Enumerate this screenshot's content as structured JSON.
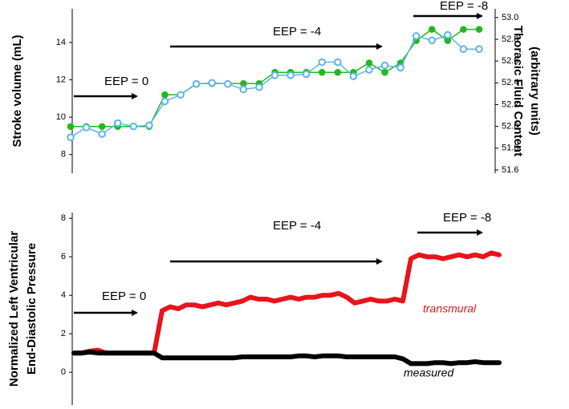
{
  "chart_data": [
    {
      "type": "line",
      "ylabel": "Stroke volume (mL)",
      "y2label": [
        "Thoracic Fluid Content",
        "(arbitrary units)"
      ],
      "ylim": [
        7.0,
        15.8
      ],
      "yticks": [
        8,
        10,
        12,
        14
      ],
      "y2lim": [
        51.57,
        53.08
      ],
      "y2ticks": [
        51.6,
        51.8,
        {
          "value": 52,
          "label": "52.0"
        },
        52.2,
        52.4,
        52.6,
        52.8,
        {
          "value": 53,
          "label": "53.0"
        }
      ],
      "annotations": [
        "EEP = 0",
        "EEP = -4",
        "EEP = -8"
      ],
      "series": [
        {
          "color": "#22b822",
          "marker": "filled",
          "values": [
            9.5,
            9.5,
            9.5,
            9.5,
            9.5,
            9.5,
            11.2,
            11.2,
            11.8,
            11.8,
            11.8,
            11.8,
            11.8,
            12.4,
            12.4,
            12.4,
            12.4,
            12.4,
            12.4,
            12.9,
            12.4,
            12.9,
            14.1,
            14.7,
            14.1,
            14.7,
            14.7
          ]
        },
        {
          "color": "#5bb6e6",
          "marker": "open",
          "axis": "y2",
          "values": [
            51.9,
            51.99,
            51.93,
            52.03,
            52.0,
            52.01,
            52.23,
            52.29,
            52.39,
            52.4,
            52.39,
            52.34,
            52.36,
            52.47,
            52.47,
            52.48,
            52.59,
            52.59,
            52.46,
            52.52,
            52.56,
            52.54,
            52.83,
            52.79,
            52.84,
            52.71,
            52.71
          ]
        }
      ]
    },
    {
      "type": "line",
      "ylabel": [
        "Normalized  Left Ventricular",
        "End-Diastolic Pressure"
      ],
      "ylim": [
        -1.7,
        8.3
      ],
      "yticks": [
        0,
        2,
        4,
        6,
        8
      ],
      "annotations": [
        "EEP = 0",
        "EEP = -4",
        "EEP = -8"
      ],
      "series": [
        {
          "name": "transmural",
          "color": "#e8141c",
          "values": [
            1.0,
            1.0,
            1.1,
            1.15,
            1.0,
            1.0,
            1.0,
            1.0,
            1.0,
            1.0,
            1.0,
            3.2,
            3.4,
            3.3,
            3.5,
            3.5,
            3.4,
            3.5,
            3.6,
            3.5,
            3.6,
            3.7,
            3.9,
            3.8,
            3.8,
            3.7,
            3.8,
            3.9,
            3.8,
            3.9,
            3.9,
            4.0,
            4.0,
            4.1,
            3.9,
            3.6,
            3.7,
            3.8,
            3.7,
            3.7,
            3.8,
            3.7,
            5.9,
            6.1,
            6.0,
            6.0,
            5.9,
            6.0,
            6.1,
            6.0,
            6.1,
            6.0,
            6.2,
            6.1
          ]
        },
        {
          "name": "measured",
          "color": "#000000",
          "values": [
            1.0,
            1.0,
            1.05,
            1.0,
            1.0,
            1.0,
            1.0,
            1.0,
            1.0,
            1.0,
            1.0,
            0.75,
            0.75,
            0.75,
            0.75,
            0.75,
            0.75,
            0.75,
            0.75,
            0.75,
            0.75,
            0.8,
            0.8,
            0.8,
            0.8,
            0.8,
            0.8,
            0.8,
            0.85,
            0.85,
            0.8,
            0.85,
            0.85,
            0.85,
            0.8,
            0.8,
            0.8,
            0.8,
            0.8,
            0.8,
            0.8,
            0.7,
            0.45,
            0.45,
            0.45,
            0.5,
            0.5,
            0.45,
            0.5,
            0.5,
            0.55,
            0.5,
            0.5,
            0.5
          ]
        }
      ]
    }
  ]
}
